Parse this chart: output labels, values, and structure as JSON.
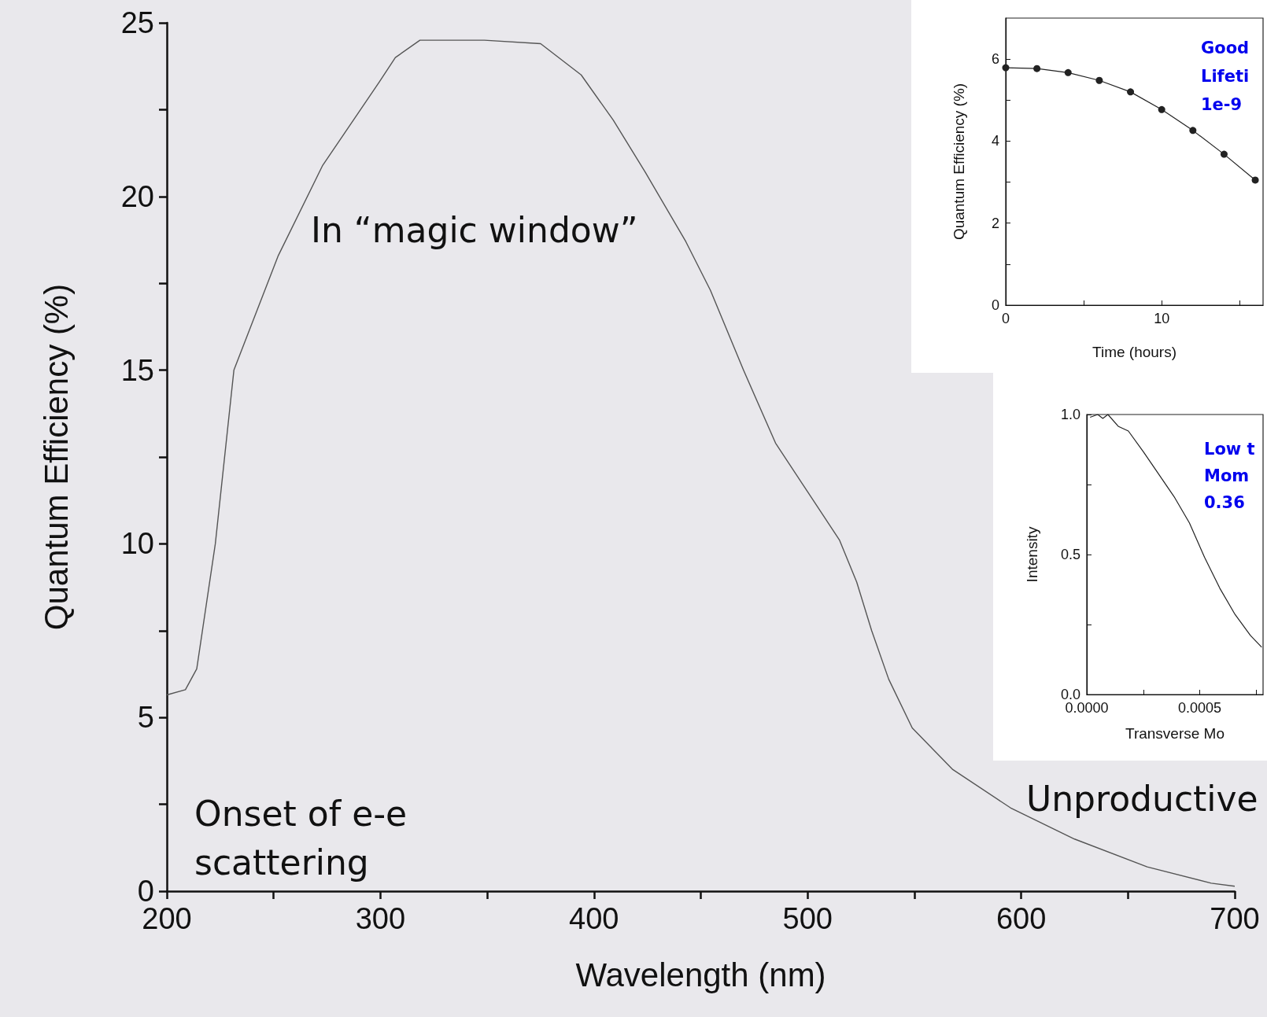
{
  "chart_data": [
    {
      "type": "line",
      "xlabel": "Wavelength (nm)",
      "ylabel": "Quantum Efficiency (%)",
      "marker": "none",
      "line_style": "solid",
      "x": [
        200,
        208.7,
        214,
        222.7,
        231.4,
        252.2,
        273,
        299.5,
        307,
        318.5,
        348.7,
        375,
        394,
        409,
        424,
        443,
        454.5,
        470,
        485,
        500,
        515,
        523,
        530,
        538,
        549,
        568,
        595,
        625,
        659,
        689,
        700
      ],
      "series": [
        {
          "color": "#555555",
          "values": [
            5.65,
            5.8,
            6.4,
            10.0,
            15.0,
            18.3,
            20.9,
            23.3,
            24.0,
            24.5,
            24.5,
            24.4,
            23.5,
            22.2,
            20.7,
            18.7,
            17.3,
            15.0,
            12.9,
            11.5,
            10.1,
            8.9,
            7.5,
            6.1,
            4.7,
            3.5,
            2.4,
            1.5,
            0.7,
            0.23,
            0.14
          ]
        }
      ],
      "xlim": [
        200,
        700
      ],
      "xticks": [
        200,
        {
          "value": 250,
          "label": null
        },
        300,
        {
          "value": 350,
          "label": null
        },
        400,
        {
          "value": 450,
          "label": null
        },
        500,
        {
          "value": 550,
          "label": null
        },
        600,
        {
          "value": 650,
          "label": null
        },
        700
      ],
      "ylim": [
        0,
        25
      ],
      "yticks": [
        0,
        {
          "value": 2.5,
          "label": null
        },
        5,
        {
          "value": 7.5,
          "label": null
        },
        10,
        {
          "value": 12.5,
          "label": null
        },
        15,
        {
          "value": 17.5,
          "label": null
        },
        20,
        {
          "value": 22.5,
          "label": null
        },
        25
      ],
      "annotations": [
        "In “magic window”",
        "Onset of e-e scattering",
        "Unproductive"
      ]
    },
    {
      "type": "line",
      "xlabel": "Time (hours)",
      "ylabel": "Quantum Efficiency (%)",
      "marker": "circle",
      "line_style": "solid",
      "x": [
        0,
        2,
        4,
        6,
        8,
        10,
        12,
        14,
        16
      ],
      "series": [
        {
          "color": "#222222",
          "values": [
            5.79,
            5.77,
            5.67,
            5.48,
            5.2,
            4.77,
            4.26,
            3.68,
            3.05
          ]
        }
      ],
      "xlim": [
        0,
        16.5
      ],
      "xticks": [
        0,
        {
          "value": 5,
          "label": null
        },
        10,
        {
          "value": 15,
          "label": null
        }
      ],
      "ylim": [
        0,
        7
      ],
      "yticks": [
        0,
        {
          "value": 1,
          "label": null
        },
        2,
        {
          "value": 3,
          "label": null
        },
        4,
        {
          "value": 5,
          "label": null
        },
        6
      ],
      "annotations": [
        "Good",
        "Lifeti",
        "1e-9"
      ]
    },
    {
      "type": "line",
      "xlabel": "Transverse Mo",
      "ylabel": "Intensity",
      "marker": "none",
      "line_style": "solid",
      "x": [
        1.46e-05,
        4.84e-05,
        7.1e-05,
        9.35e-05,
        0.000139,
        0.000184,
        0.000251,
        0.000307,
        0.000386,
        0.000454,
        0.000521,
        0.000589,
        0.000656,
        0.000724,
        0.000774
      ],
      "series": [
        {
          "color": "#222222",
          "values": [
            0.99,
            1.0,
            0.986,
            1.0,
            0.958,
            0.941,
            0.866,
            0.8,
            0.707,
            0.613,
            0.49,
            0.379,
            0.286,
            0.211,
            0.169
          ]
        }
      ],
      "xlim": [
        0,
        0.00078
      ],
      "xticks": [
        {
          "value": 0,
          "label": "0.0000"
        },
        {
          "value": 0.00025,
          "label": null
        },
        {
          "value": 0.0005,
          "label": "0.0005"
        },
        {
          "value": 0.00075,
          "label": null
        }
      ],
      "ylim": [
        0,
        1
      ],
      "yticks": [
        {
          "value": 0,
          "label": "0.0"
        },
        {
          "value": 0.25,
          "label": null
        },
        {
          "value": 0.5,
          "label": "0.5"
        },
        {
          "value": 0.75,
          "label": null
        },
        {
          "value": 1,
          "label": "1.0"
        }
      ],
      "annotations": [
        "Low t",
        "Mom",
        "0.36"
      ]
    }
  ]
}
